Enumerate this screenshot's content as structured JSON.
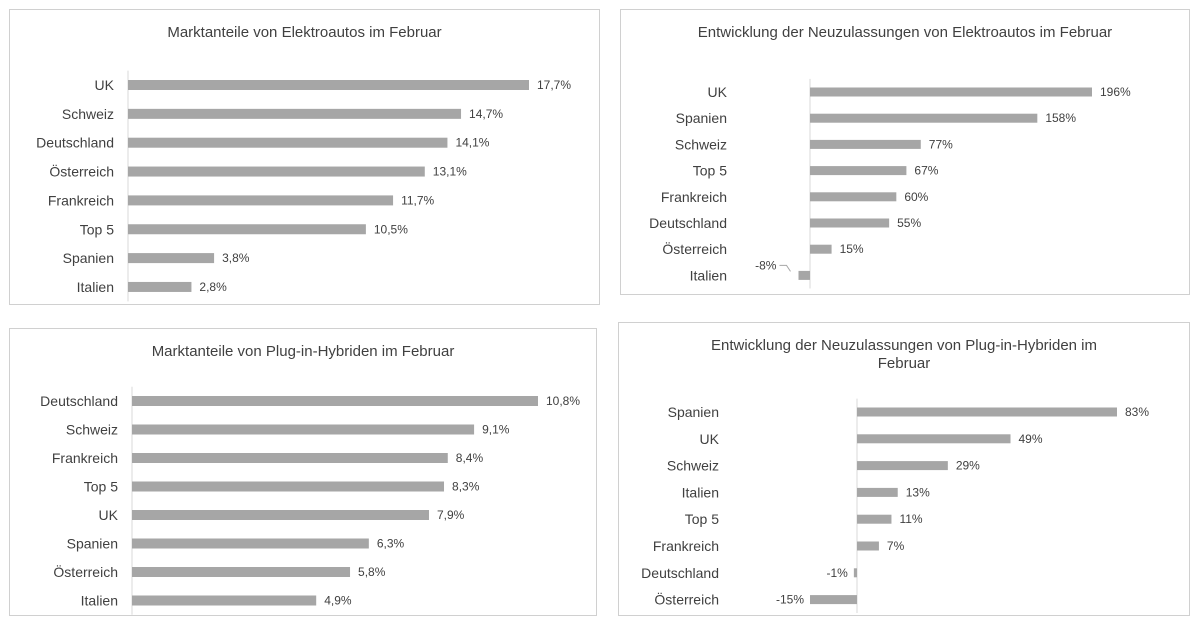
{
  "chart_data": [
    {
      "type": "bar",
      "orientation": "horizontal",
      "title": "Marktanteile von Elektroautos im Februar",
      "categories": [
        "UK",
        "Schweiz",
        "Deutschland",
        "Österreich",
        "Frankreich",
        "Top 5",
        "Spanien",
        "Italien"
      ],
      "values": [
        17.7,
        14.7,
        14.1,
        13.1,
        11.7,
        10.5,
        3.8,
        2.8
      ],
      "labels": [
        "17,7%",
        "14,7%",
        "14,1%",
        "13,1%",
        "11,7%",
        "10,5%",
        "3,8%",
        "2,8%"
      ],
      "xlim": [
        0,
        17.7
      ],
      "grid": false,
      "color": "#a6a6a6"
    },
    {
      "type": "bar",
      "orientation": "horizontal",
      "title": "Entwicklung  der Neuzulassungen  von Elektroautos  im Februar",
      "categories": [
        "UK",
        "Spanien",
        "Schweiz",
        "Top 5",
        "Frankreich",
        "Deutschland",
        "Österreich",
        "Italien"
      ],
      "values": [
        196,
        158,
        77,
        67,
        60,
        55,
        15,
        -8
      ],
      "labels": [
        "196%",
        "158%",
        "77%",
        "67%",
        "60%",
        "55%",
        "15%",
        "-8%"
      ],
      "xlim": [
        -8,
        196
      ],
      "grid": false,
      "color": "#a6a6a6"
    },
    {
      "type": "bar",
      "orientation": "horizontal",
      "title": "Marktanteile  von  Plug-in-Hybriden  im Februar",
      "categories": [
        "Deutschland",
        "Schweiz",
        "Frankreich",
        "Top 5",
        "UK",
        "Spanien",
        "Österreich",
        "Italien"
      ],
      "values": [
        10.8,
        9.1,
        8.4,
        8.3,
        7.9,
        6.3,
        5.8,
        4.9
      ],
      "labels": [
        "10,8%",
        "9,1%",
        "8,4%",
        "8,3%",
        "7,9%",
        "6,3%",
        "5,8%",
        "4,9%"
      ],
      "xlim": [
        0,
        10.8
      ],
      "grid": false,
      "color": "#a6a6a6"
    },
    {
      "type": "bar",
      "orientation": "horizontal",
      "title": "Entwicklung  der Neuzulassungen  von  Plug-in-Hybriden im\nFebruar",
      "categories": [
        "Spanien",
        "UK",
        "Schweiz",
        "Italien",
        "Top 5",
        "Frankreich",
        "Deutschland",
        "Österreich"
      ],
      "values": [
        83,
        49,
        29,
        13,
        11,
        7,
        -1,
        -15
      ],
      "labels": [
        "83%",
        "49%",
        "29%",
        "13%",
        "11%",
        "7%",
        "-1%",
        "-15%"
      ],
      "xlim": [
        -15,
        83
      ],
      "grid": false,
      "color": "#a6a6a6"
    }
  ]
}
